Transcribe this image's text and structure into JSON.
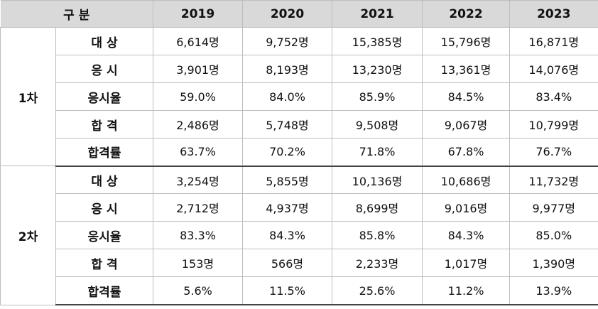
{
  "header": {
    "category": "구 분",
    "years": [
      "2019",
      "2020",
      "2021",
      "2022",
      "2023"
    ]
  },
  "groups": [
    {
      "label": "1차",
      "rows": [
        {
          "item": "대 상",
          "values": [
            "6,614명",
            "9,752명",
            "15,385명",
            "15,796명",
            "16,871명"
          ]
        },
        {
          "item": "응 시",
          "values": [
            "3,901명",
            "8,193명",
            "13,230명",
            "13,361명",
            "14,076명"
          ]
        },
        {
          "item": "응시율",
          "values": [
            "59.0%",
            "84.0%",
            "85.9%",
            "84.5%",
            "83.4%"
          ]
        },
        {
          "item": "합 격",
          "values": [
            "2,486명",
            "5,748명",
            "9,508명",
            "9,067명",
            "10,799명"
          ]
        },
        {
          "item": "합격률",
          "values": [
            "63.7%",
            "70.2%",
            "71.8%",
            "67.8%",
            "76.7%"
          ]
        }
      ]
    },
    {
      "label": "2차",
      "rows": [
        {
          "item": "대 상",
          "values": [
            "3,254명",
            "5,855명",
            "10,136명",
            "10,686명",
            "11,732명"
          ]
        },
        {
          "item": "응 시",
          "values": [
            "2,712명",
            "4,937명",
            "8,699명",
            "9,016명",
            "9,977명"
          ]
        },
        {
          "item": "응시율",
          "values": [
            "83.3%",
            "84.3%",
            "85.8%",
            "84.3%",
            "85.0%"
          ]
        },
        {
          "item": "합 격",
          "values": [
            "153명",
            "566명",
            "2,233명",
            "1,017명",
            "1,390명"
          ]
        },
        {
          "item": "합격률",
          "values": [
            "5.6%",
            "11.5%",
            "25.6%",
            "11.2%",
            "13.9%"
          ]
        }
      ]
    }
  ]
}
